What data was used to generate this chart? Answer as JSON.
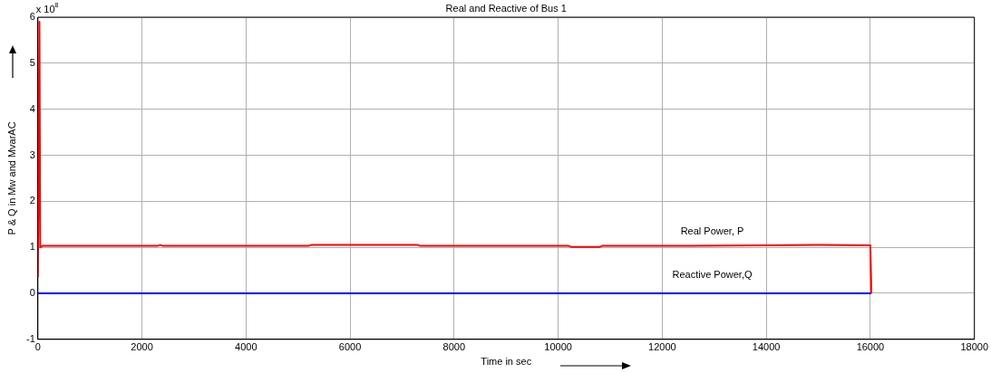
{
  "chart_data": {
    "type": "line",
    "title": "Real and Reactive of Bus 1",
    "xlabel": "Time in sec",
    "ylabel": "P & Q in Mw and MvarAC",
    "annotations": [
      "x 10$^{8}$"
    ],
    "xlim": [
      0,
      18000
    ],
    "xticks": [
      0,
      2000,
      4000,
      6000,
      8000,
      10000,
      12000,
      14000,
      16000,
      18000
    ],
    "ylim": [
      -1,
      6
    ],
    "yticks": [
      -1,
      0,
      1,
      2,
      3,
      4,
      5,
      6
    ],
    "grid": true,
    "legend": false,
    "marker": "none",
    "line_style": "solid",
    "series": [
      {
        "name": "Real Power, P",
        "color": "#ff0000",
        "x": [
          0,
          30,
          45,
          90,
          2300,
          2350,
          2400,
          5200,
          5250,
          7300,
          7350,
          10200,
          10250,
          10800,
          10850,
          12500,
          14000,
          15000,
          16000,
          16020
        ],
        "values": [
          0.35,
          5.9,
          1.0,
          1.03,
          1.03,
          1.05,
          1.03,
          1.03,
          1.05,
          1.05,
          1.03,
          1.03,
          1.01,
          1.01,
          1.03,
          1.03,
          1.04,
          1.05,
          1.04,
          0
        ]
      },
      {
        "name": "Reactive Power,Q",
        "color": "#0000ff",
        "x": [
          0,
          16020
        ],
        "values": [
          0,
          0
        ]
      }
    ]
  }
}
